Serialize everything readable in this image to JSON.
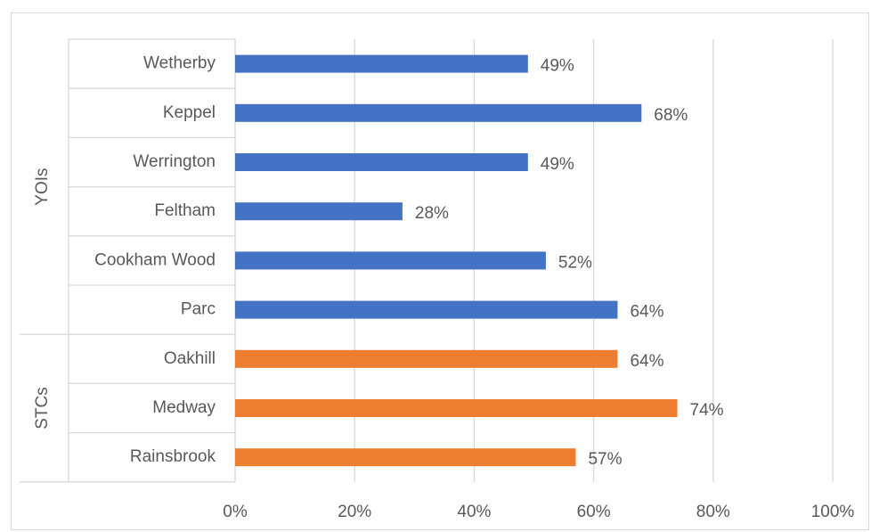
{
  "chart_data": {
    "type": "bar",
    "orientation": "horizontal",
    "categories": [
      "Wetherby",
      "Keppel",
      "Werrington",
      "Feltham",
      "Cookham Wood",
      "Parc",
      "Oakhill",
      "Medway",
      "Rainsbrook"
    ],
    "values": [
      49,
      68,
      49,
      28,
      52,
      64,
      64,
      74,
      57
    ],
    "value_labels": [
      "49%",
      "68%",
      "49%",
      "28%",
      "52%",
      "64%",
      "64%",
      "74%",
      "57%"
    ],
    "groups": [
      {
        "name": "YOIs",
        "categories": [
          "Wetherby",
          "Keppel",
          "Werrington",
          "Feltham",
          "Cookham Wood",
          "Parc"
        ],
        "color": "#4472c4"
      },
      {
        "name": "STCs",
        "categories": [
          "Oakhill",
          "Medway",
          "Rainsbrook"
        ],
        "color": "#ed7d31"
      }
    ],
    "xlim": [
      0,
      100
    ],
    "x_ticks": [
      0,
      20,
      40,
      60,
      80,
      100
    ],
    "x_tick_labels": [
      "0%",
      "20%",
      "40%",
      "60%",
      "80%",
      "100%"
    ],
    "grid": "vertical",
    "legend": "none"
  }
}
